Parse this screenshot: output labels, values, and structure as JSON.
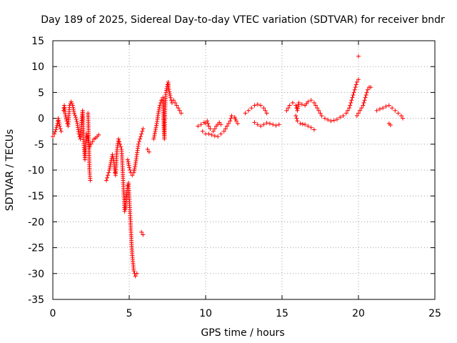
{
  "chart_data": {
    "type": "scatter",
    "title": "Day 189 of 2025, Sidereal Day-to-day VTEC variation (SDTVAR) for receiver bndr",
    "xlabel": "GPS time / hours",
    "ylabel": "SDTVAR / TECUs",
    "xlim": [
      0,
      25
    ],
    "ylim": [
      -35,
      15
    ],
    "x_ticks": [
      0,
      5,
      10,
      15,
      20,
      25
    ],
    "y_ticks": [
      -35,
      -30,
      -25,
      -20,
      -15,
      -10,
      -5,
      0,
      5,
      10,
      15
    ],
    "grid": true,
    "marker": "+",
    "series_color": "#ff0000",
    "series": [
      {
        "name": "seg1",
        "points": [
          [
            0.0,
            -3.5
          ],
          [
            0.1,
            -3.0
          ],
          [
            0.2,
            -2.2
          ],
          [
            0.3,
            -1.0
          ],
          [
            0.35,
            0.0
          ],
          [
            0.45,
            -1.5
          ],
          [
            0.55,
            -2.5
          ]
        ]
      },
      {
        "name": "seg2",
        "points": [
          [
            0.7,
            1.5
          ],
          [
            0.75,
            2.5
          ],
          [
            0.8,
            1.0
          ],
          [
            0.9,
            -0.5
          ],
          [
            1.0,
            -1.5
          ],
          [
            1.05,
            0.5
          ],
          [
            1.1,
            2.5
          ],
          [
            1.2,
            3.2
          ],
          [
            1.3,
            2.5
          ],
          [
            1.4,
            1.0
          ],
          [
            1.5,
            0.2
          ],
          [
            1.6,
            -1.0
          ],
          [
            1.7,
            -3.0
          ],
          [
            1.8,
            -4.0
          ],
          [
            1.85,
            -2.0
          ],
          [
            1.9,
            0.0
          ],
          [
            1.95,
            1.5
          ],
          [
            2.0,
            -3.0
          ],
          [
            2.05,
            -6.0
          ],
          [
            2.1,
            -8.0
          ],
          [
            2.15,
            -5.0
          ],
          [
            2.2,
            -3.0
          ],
          [
            2.3,
            -4.0
          ],
          [
            2.4,
            -5.5
          ],
          [
            2.5,
            -5.0
          ],
          [
            2.6,
            -4.5
          ],
          [
            2.7,
            -4.0
          ],
          [
            2.8,
            -3.8
          ],
          [
            2.9,
            -3.5
          ],
          [
            3.0,
            -3.2
          ]
        ]
      },
      {
        "name": "seg3",
        "points": [
          [
            2.3,
            1.0
          ],
          [
            2.35,
            -4.0
          ],
          [
            2.4,
            -10.0
          ],
          [
            2.45,
            -12.0
          ]
        ]
      },
      {
        "name": "seg4",
        "points": [
          [
            3.5,
            -12.0
          ],
          [
            3.6,
            -11.0
          ],
          [
            3.7,
            -10.0
          ],
          [
            3.8,
            -8.5
          ],
          [
            3.9,
            -7.0
          ],
          [
            4.0,
            -8.5
          ],
          [
            4.05,
            -10.0
          ],
          [
            4.1,
            -11.0
          ],
          [
            4.2,
            -6.0
          ],
          [
            4.3,
            -4.0
          ],
          [
            4.4,
            -5.0
          ],
          [
            4.5,
            -6.0
          ],
          [
            4.55,
            -9.0
          ],
          [
            4.6,
            -12.0
          ],
          [
            4.65,
            -15.0
          ],
          [
            4.7,
            -18.0
          ],
          [
            4.75,
            -17.5
          ],
          [
            4.8,
            -16.0
          ],
          [
            4.85,
            -14.0
          ],
          [
            4.9,
            -13.0
          ],
          [
            4.95,
            -12.5
          ],
          [
            5.0,
            -15.0
          ],
          [
            5.05,
            -18.0
          ],
          [
            5.1,
            -21.0
          ],
          [
            5.15,
            -24.0
          ],
          [
            5.2,
            -26.5
          ],
          [
            5.25,
            -28.0
          ],
          [
            5.3,
            -29.5
          ],
          [
            5.4,
            -30.5
          ],
          [
            5.5,
            -30.0
          ]
        ]
      },
      {
        "name": "seg5",
        "points": [
          [
            4.9,
            -8.0
          ],
          [
            5.0,
            -9.5
          ],
          [
            5.1,
            -10.5
          ],
          [
            5.2,
            -11.0
          ],
          [
            5.3,
            -10.5
          ],
          [
            5.4,
            -9.0
          ],
          [
            5.5,
            -7.0
          ],
          [
            5.6,
            -5.0
          ],
          [
            5.7,
            -4.0
          ],
          [
            5.8,
            -3.0
          ],
          [
            5.9,
            -2.0
          ]
        ]
      },
      {
        "name": "seg6",
        "points": [
          [
            5.8,
            -22.0
          ],
          [
            5.9,
            -22.5
          ]
        ]
      },
      {
        "name": "seg7",
        "points": [
          [
            6.2,
            -6.0
          ],
          [
            6.3,
            -6.5
          ]
        ]
      },
      {
        "name": "seg8",
        "points": [
          [
            6.6,
            -4.0
          ],
          [
            6.7,
            -2.5
          ],
          [
            6.8,
            -1.0
          ],
          [
            6.9,
            1.0
          ],
          [
            7.0,
            2.5
          ],
          [
            7.1,
            3.5
          ],
          [
            7.2,
            4.0
          ],
          [
            7.25,
            -1.0
          ],
          [
            7.3,
            -4.0
          ],
          [
            7.35,
            2.0
          ],
          [
            7.4,
            5.0
          ],
          [
            7.5,
            6.5
          ],
          [
            7.55,
            7.0
          ],
          [
            7.6,
            5.5
          ],
          [
            7.7,
            4.0
          ],
          [
            7.8,
            3.0
          ],
          [
            7.9,
            3.5
          ],
          [
            8.0,
            3.0
          ],
          [
            8.1,
            2.5
          ],
          [
            8.2,
            2.0
          ],
          [
            8.3,
            1.5
          ],
          [
            8.4,
            1.0
          ]
        ]
      },
      {
        "name": "seg9",
        "points": [
          [
            9.5,
            -1.5
          ],
          [
            9.7,
            -1.2
          ],
          [
            9.9,
            -0.8
          ],
          [
            10.0,
            -1.0
          ],
          [
            10.1,
            -0.5
          ],
          [
            10.2,
            -1.5
          ],
          [
            10.3,
            -2.0
          ],
          [
            10.5,
            -2.5
          ],
          [
            10.7,
            -1.5
          ],
          [
            10.9,
            -0.8
          ],
          [
            11.0,
            -1.2
          ]
        ]
      },
      {
        "name": "seg10",
        "points": [
          [
            9.8,
            -2.5
          ],
          [
            10.0,
            -3.0
          ],
          [
            10.2,
            -3.0
          ],
          [
            10.4,
            -3.2
          ],
          [
            10.6,
            -3.4
          ],
          [
            10.8,
            -3.5
          ],
          [
            11.0,
            -3.0
          ],
          [
            11.2,
            -2.5
          ],
          [
            11.4,
            -1.5
          ],
          [
            11.6,
            -0.5
          ],
          [
            11.7,
            0.5
          ],
          [
            11.9,
            0.2
          ],
          [
            12.0,
            -0.5
          ],
          [
            12.1,
            -1.0
          ]
        ]
      },
      {
        "name": "seg11",
        "points": [
          [
            12.6,
            1.0
          ],
          [
            12.8,
            1.5
          ],
          [
            13.0,
            2.0
          ],
          [
            13.2,
            2.5
          ],
          [
            13.4,
            2.7
          ],
          [
            13.6,
            2.5
          ],
          [
            13.8,
            2.0
          ],
          [
            14.0,
            1.0
          ]
        ]
      },
      {
        "name": "seg12",
        "points": [
          [
            13.2,
            -0.8
          ],
          [
            13.4,
            -1.2
          ],
          [
            13.6,
            -1.5
          ],
          [
            13.8,
            -1.2
          ],
          [
            14.0,
            -0.9
          ],
          [
            14.2,
            -1.0
          ],
          [
            14.4,
            -1.2
          ],
          [
            14.6,
            -1.4
          ],
          [
            14.8,
            -1.2
          ]
        ]
      },
      {
        "name": "seg13",
        "points": [
          [
            15.3,
            1.5
          ],
          [
            15.5,
            2.5
          ],
          [
            15.7,
            3.0
          ],
          [
            15.9,
            2.5
          ],
          [
            16.0,
            1.5
          ],
          [
            16.1,
            3.0
          ],
          [
            16.3,
            2.7
          ],
          [
            16.5,
            2.5
          ],
          [
            16.7,
            3.2
          ],
          [
            16.9,
            3.5
          ],
          [
            17.1,
            3.0
          ],
          [
            17.3,
            2.0
          ],
          [
            17.5,
            1.0
          ]
        ]
      },
      {
        "name": "seg14",
        "points": [
          [
            15.9,
            0.5
          ],
          [
            16.0,
            -0.5
          ]
        ]
      },
      {
        "name": "seg15",
        "points": [
          [
            16.2,
            -1.0
          ],
          [
            16.5,
            -1.2
          ],
          [
            16.7,
            -1.5
          ],
          [
            16.9,
            -1.8
          ],
          [
            17.1,
            -2.2
          ]
        ]
      },
      {
        "name": "seg16",
        "points": [
          [
            17.6,
            0.5
          ],
          [
            17.8,
            0.0
          ],
          [
            18.0,
            -0.3
          ],
          [
            18.2,
            -0.5
          ],
          [
            18.4,
            -0.4
          ],
          [
            18.6,
            -0.2
          ],
          [
            18.8,
            0.2
          ],
          [
            19.0,
            0.5
          ],
          [
            19.2,
            1.0
          ],
          [
            19.4,
            2.0
          ],
          [
            19.5,
            3.0
          ],
          [
            19.6,
            4.0
          ],
          [
            19.7,
            5.0
          ],
          [
            19.8,
            6.0
          ],
          [
            19.9,
            7.0
          ],
          [
            20.0,
            7.5
          ]
        ]
      },
      {
        "name": "seg17",
        "points": [
          [
            19.9,
            0.5
          ],
          [
            20.0,
            1.0
          ],
          [
            20.1,
            1.5
          ],
          [
            20.2,
            2.0
          ],
          [
            20.3,
            2.5
          ],
          [
            20.4,
            3.5
          ],
          [
            20.5,
            4.5
          ],
          [
            20.6,
            5.5
          ],
          [
            20.7,
            6.0
          ],
          [
            20.8,
            6.0
          ]
        ]
      },
      {
        "name": "seg18",
        "points": [
          [
            20.0,
            12.0
          ]
        ]
      },
      {
        "name": "seg19",
        "points": [
          [
            21.2,
            1.5
          ],
          [
            21.4,
            1.8
          ],
          [
            21.6,
            2.0
          ],
          [
            21.8,
            2.3
          ],
          [
            22.0,
            2.5
          ],
          [
            22.2,
            2.0
          ],
          [
            22.4,
            1.5
          ],
          [
            22.6,
            1.0
          ],
          [
            22.8,
            0.5
          ],
          [
            22.9,
            0.0
          ]
        ]
      },
      {
        "name": "seg20",
        "points": [
          [
            22.0,
            -1.0
          ],
          [
            22.1,
            -1.3
          ]
        ]
      }
    ]
  }
}
